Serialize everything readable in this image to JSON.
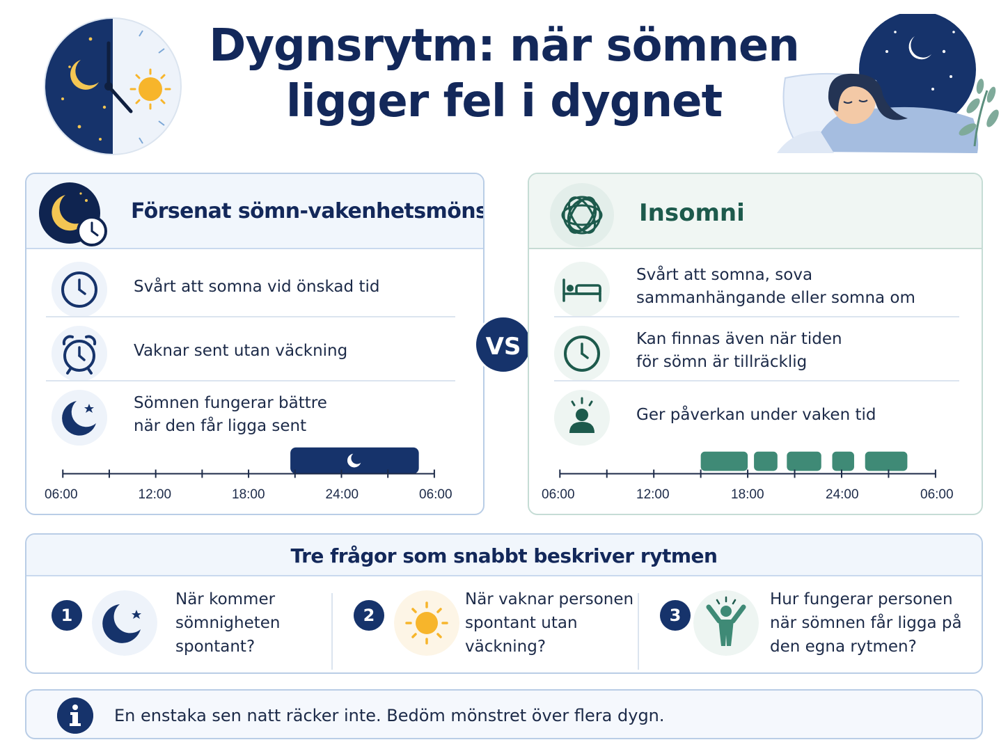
{
  "title": {
    "line1": "Dygnsrytm: när sömnen",
    "line2": "ligger fel i dygnet"
  },
  "left_panel": {
    "title": "Försenat sömn-vakenhetsmönster",
    "icon": "moon-clock-icon",
    "rows": [
      {
        "icon": "clock-icon",
        "lines": [
          "Svårt att somna vid önskad tid"
        ]
      },
      {
        "icon": "alarm-clock-icon",
        "lines": [
          "Vaknar sent utan väckning"
        ]
      },
      {
        "icon": "moon-star-icon",
        "lines": [
          "Sömnen fungerar bättre",
          "när den får ligga sent"
        ]
      }
    ],
    "timeline": {
      "ticks": [
        "06:00",
        "12:00",
        "18:00",
        "24:00",
        "06:00"
      ],
      "sleep_blocks": [
        {
          "start_hour": 20.7,
          "end_hour": 29.0
        }
      ],
      "color": "#16336b"
    }
  },
  "vs_label": "VS",
  "right_panel": {
    "title": "Insomni",
    "icon": "tangled-thoughts-icon",
    "rows": [
      {
        "icon": "bed-icon",
        "lines": [
          "Svårt att somna, sova",
          "sammanhängande eller somna om"
        ]
      },
      {
        "icon": "clock-icon",
        "lines": [
          "Kan finnas även när tiden",
          "för sömn är tillräcklig"
        ]
      },
      {
        "icon": "person-alert-icon",
        "lines": [
          "Ger påverkan under vaken tid"
        ]
      }
    ],
    "timeline": {
      "ticks": [
        "06:00",
        "12:00",
        "18:00",
        "24:00",
        "06:00"
      ],
      "sleep_blocks": [
        {
          "start_hour": 15.0,
          "end_hour": 18.0
        },
        {
          "start_hour": 18.4,
          "end_hour": 19.9
        },
        {
          "start_hour": 20.5,
          "end_hour": 22.7
        },
        {
          "start_hour": 23.4,
          "end_hour": 24.8
        },
        {
          "start_hour": 25.5,
          "end_hour": 28.2
        }
      ],
      "color": "#3f8a76"
    }
  },
  "questions": {
    "title": "Tre frågor som snabbt beskriver rytmen",
    "items": [
      {
        "number": "1",
        "icon": "moon-star-icon",
        "lines": [
          "När kommer",
          "sömnigheten",
          "spontant?"
        ]
      },
      {
        "number": "2",
        "icon": "sun-icon",
        "lines": [
          "När vaknar personen",
          "spontant utan",
          "väckning?"
        ]
      },
      {
        "number": "3",
        "icon": "person-cheering-icon",
        "lines": [
          "Hur fungerar personen",
          "när sömnen får ligga på",
          "den egna rytmen?"
        ]
      }
    ]
  },
  "info": {
    "icon": "info-icon",
    "text": "En enstaka sen natt räcker inte. Bedöm mönstret över flera dygn."
  },
  "colors": {
    "navy": "#16336b",
    "green": "#3f8a76",
    "sun": "#f7b52b"
  }
}
